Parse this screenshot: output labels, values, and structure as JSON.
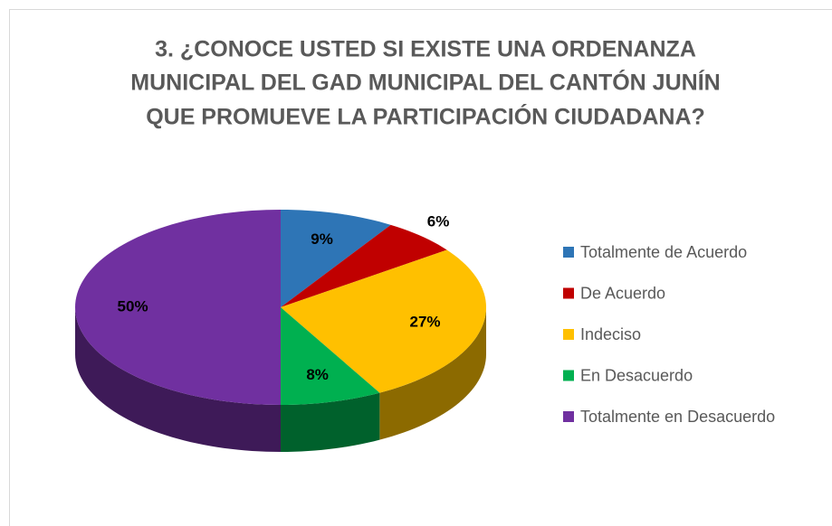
{
  "chart_data": {
    "type": "pie",
    "title": [
      "3. ¿CONOCE USTED SI EXISTE UNA ORDENANZA",
      "MUNICIPAL DEL GAD MUNICIPAL DEL CANTÓN JUNÍN",
      "QUE PROMUEVE LA PARTICIPACIÓN CIUDADANA?"
    ],
    "categories": [
      "Totalmente de Acuerdo",
      "De Acuerdo",
      "Indeciso",
      "En Desacuerdo",
      "Totalmente en Desacuerdo"
    ],
    "values": [
      9,
      6,
      27,
      8,
      50
    ],
    "value_labels": [
      "9%",
      "6%",
      "27%",
      "8%",
      "50%"
    ],
    "colors": [
      "#2e75b6",
      "#c00000",
      "#ffc000",
      "#00b050",
      "#7030a0"
    ],
    "legend": "right"
  }
}
